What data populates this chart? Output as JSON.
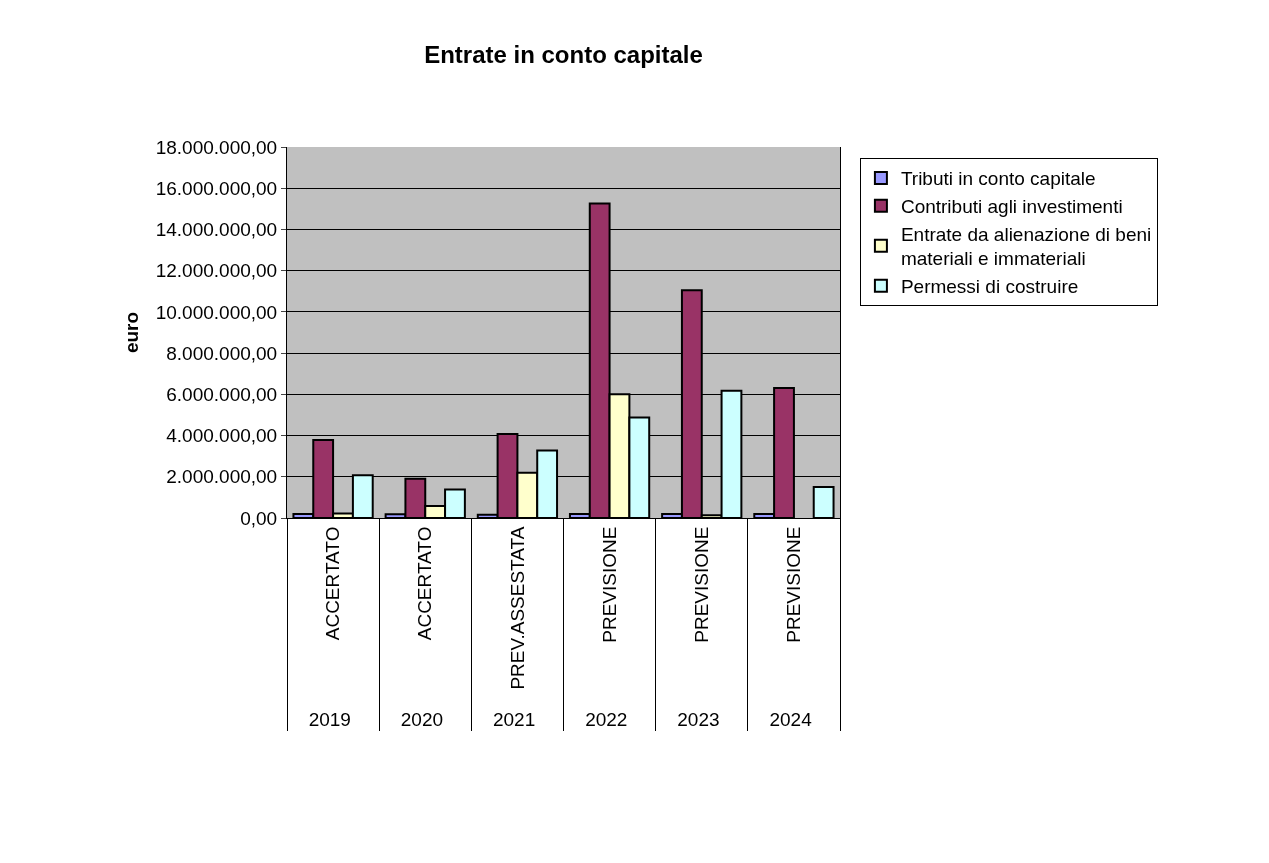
{
  "chart_data": {
    "type": "bar",
    "title": "Entrate in conto capitale",
    "ylabel": "euro",
    "categories": [
      [
        "2019",
        "ACCERTATO"
      ],
      [
        "2020",
        "ACCERTATO"
      ],
      [
        "2021",
        "PREV.ASSESTATA"
      ],
      [
        "2022",
        "PREVISIONE"
      ],
      [
        "2023",
        "PREVISIONE"
      ],
      [
        "2024",
        "PREVISIONE"
      ]
    ],
    "series": [
      {
        "name": "Tributi in conto capitale",
        "color": "#9999ff",
        "values": [
          190000,
          180000,
          160000,
          200000,
          200000,
          200000
        ]
      },
      {
        "name": "Contributi agli investimenti",
        "color": "#993366",
        "values": [
          3780000,
          1910000,
          4080000,
          15260000,
          11050000,
          6310000
        ]
      },
      {
        "name": "Entrate da alienazione di beni materiali e immateriali",
        "color": "#ffffcc",
        "values": [
          220000,
          580000,
          2200000,
          6000000,
          130000,
          null
        ]
      },
      {
        "name": "Permessi di costruire",
        "color": "#ccffff",
        "values": [
          2070000,
          1380000,
          3270000,
          4870000,
          6170000,
          1500000
        ]
      }
    ],
    "ylim": [
      0,
      18000000
    ],
    "yticks": [
      {
        "value": 0,
        "label": "0,00"
      },
      {
        "value": 2000000,
        "label": "2.000.000,00"
      },
      {
        "value": 4000000,
        "label": "4.000.000,00"
      },
      {
        "value": 6000000,
        "label": "6.000.000,00"
      },
      {
        "value": 8000000,
        "label": "8.000.000,00"
      },
      {
        "value": 10000000,
        "label": "10.000.000,00"
      },
      {
        "value": 12000000,
        "label": "12.000.000,00"
      },
      {
        "value": 14000000,
        "label": "14.000.000,00"
      },
      {
        "value": 16000000,
        "label": "16.000.000,00"
      },
      {
        "value": 18000000,
        "label": "18.000.000,00"
      }
    ],
    "grid": "y",
    "legend": "right"
  }
}
